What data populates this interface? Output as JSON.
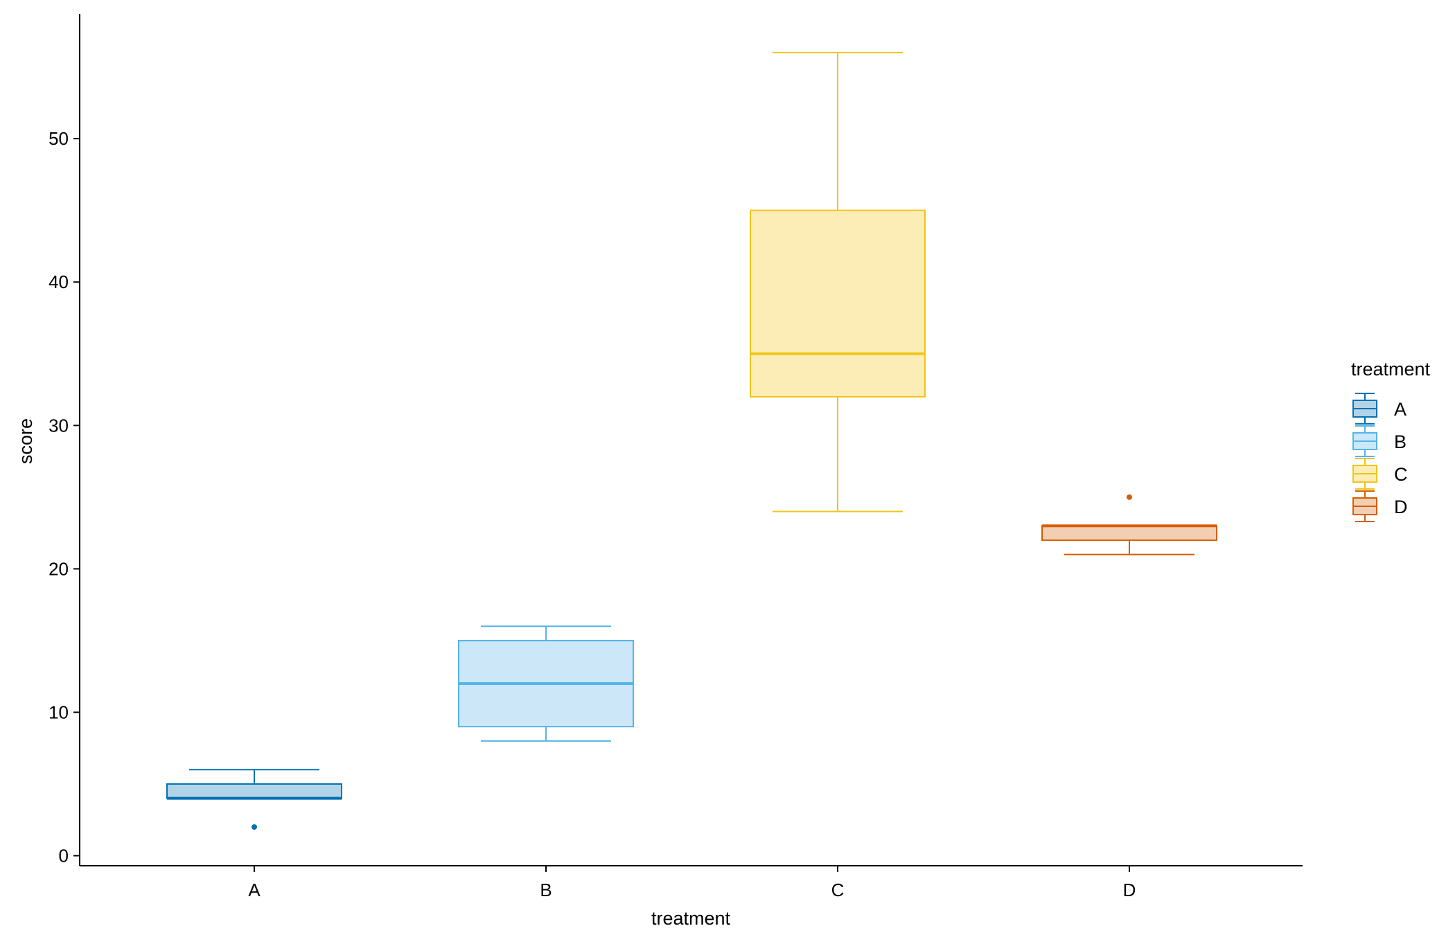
{
  "chart_data": {
    "type": "boxplot",
    "xlabel": "treatment",
    "ylabel": "score",
    "ylim": [
      -0.7,
      58.7
    ],
    "yticks": [
      0,
      10,
      20,
      30,
      40,
      50
    ],
    "grid": false,
    "legend": {
      "title": "treatment",
      "placement": "right",
      "entries": [
        "A",
        "B",
        "C",
        "D"
      ]
    },
    "categories": [
      "A",
      "B",
      "C",
      "D"
    ],
    "boxes": [
      {
        "category": "A",
        "min": 4,
        "q1": 4,
        "median": 4,
        "q3": 5,
        "max": 6,
        "outliers": [
          2
        ],
        "color": "#0072B2",
        "fill": "#B2D4E8"
      },
      {
        "category": "B",
        "min": 8,
        "q1": 9,
        "median": 12,
        "q3": 15,
        "max": 16,
        "outliers": [],
        "color": "#56B4E9",
        "fill": "#CCE8F8"
      },
      {
        "category": "C",
        "min": 24,
        "q1": 32,
        "median": 35,
        "q3": 45,
        "max": 56,
        "outliers": [],
        "color": "#F0C419",
        "fill": "#FBEDB5"
      },
      {
        "category": "D",
        "min": 21,
        "q1": 22,
        "median": 23,
        "q3": 23,
        "max": 23,
        "outliers": [
          25
        ],
        "color": "#D55E00",
        "fill": "#F2CEB2"
      }
    ]
  }
}
